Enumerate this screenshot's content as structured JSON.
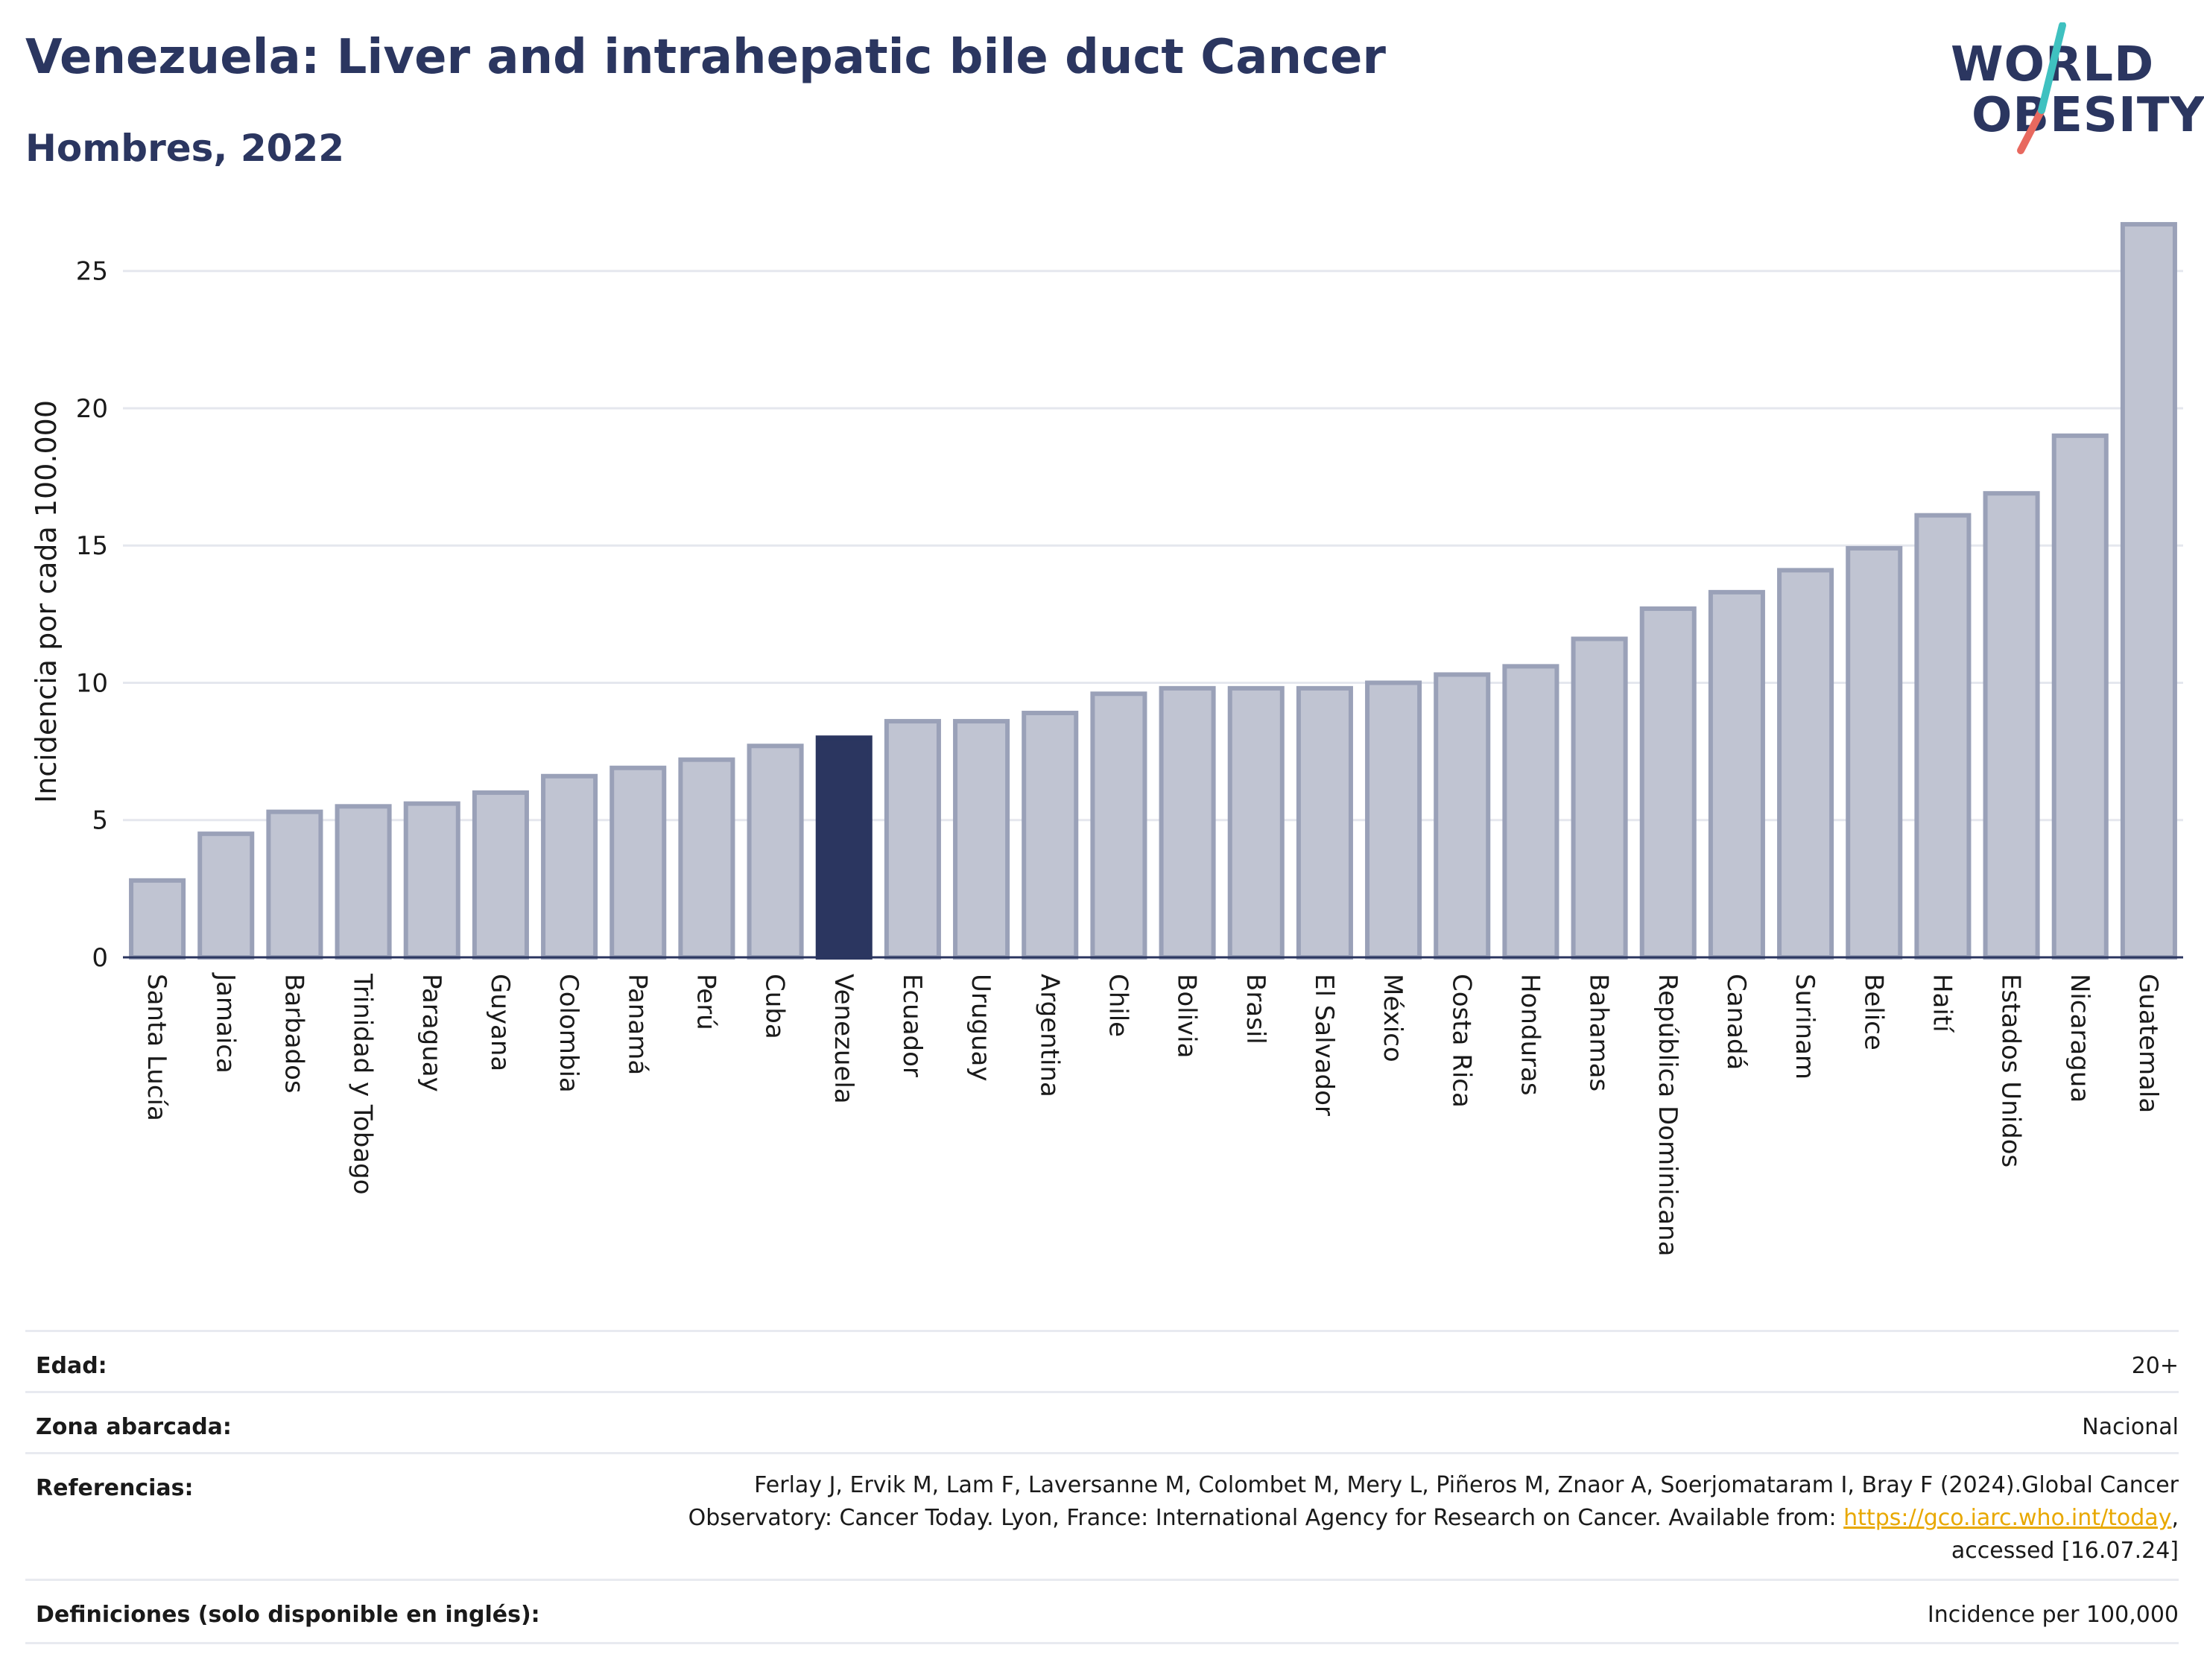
{
  "header": {
    "title": "Venezuela: Liver and intrahepatic bile duct Cancer",
    "subtitle": "Hombres, 2022"
  },
  "logo": {
    "line1": "WORLD",
    "line2": "OBESITY",
    "accent_teal": "#3fc1c0",
    "accent_red": "#e8695f"
  },
  "colors": {
    "bar_default": "#c0c4d2",
    "bar_border": "#9aa1b8",
    "bar_highlight": "#2b3660",
    "grid": "#e5e7ee",
    "axis": "#2b3660"
  },
  "chart_data": {
    "type": "bar",
    "ylabel": "Incidencia por cada 100.000",
    "ylim": [
      0,
      27
    ],
    "yticks": [
      0,
      5,
      10,
      15,
      20,
      25
    ],
    "highlight": "Venezuela",
    "categories": [
      "Santa Lucía",
      "Jamaica",
      "Barbados",
      "Trinidad y Tobago",
      "Paraguay",
      "Guyana",
      "Colombia",
      "Panamá",
      "Perú",
      "Cuba",
      "Venezuela",
      "Ecuador",
      "Uruguay",
      "Argentina",
      "Chile",
      "Bolivia",
      "Brasil",
      "El Salvador",
      "México",
      "Costa Rica",
      "Honduras",
      "Bahamas",
      "República Dominicana",
      "Canadá",
      "Surinam",
      "Belice",
      "Haití",
      "Estados Unidos",
      "Nicaragua",
      "Guatemala"
    ],
    "values": [
      2.8,
      4.5,
      5.3,
      5.5,
      5.6,
      6.0,
      6.6,
      6.9,
      7.2,
      7.7,
      8.0,
      8.6,
      8.6,
      8.9,
      9.6,
      9.8,
      9.8,
      9.8,
      10.0,
      10.3,
      10.6,
      11.6,
      12.7,
      13.3,
      14.1,
      14.9,
      16.1,
      16.9,
      19.0,
      26.7
    ]
  },
  "meta": {
    "age_label": "Edad:",
    "age_value": "20+",
    "area_label": "Zona abarcada:",
    "area_value": "Nacional",
    "ref_label": "Referencias:",
    "ref_text_1": "Ferlay J, Ervik M, Lam F, Laversanne M, Colombet M, Mery L, Piñeros M, Znaor A, Soerjomataram I, Bray F (2024).Global Cancer Observatory: Cancer Today. Lyon, France: International Agency for Research on Cancer. Available from: ",
    "ref_link": "https://gco.iarc.who.int/today",
    "ref_text_2": ", accessed [16.07.24]",
    "def_label": "Definiciones (solo disponible en inglés):",
    "def_value": "Incidence per 100,000"
  }
}
